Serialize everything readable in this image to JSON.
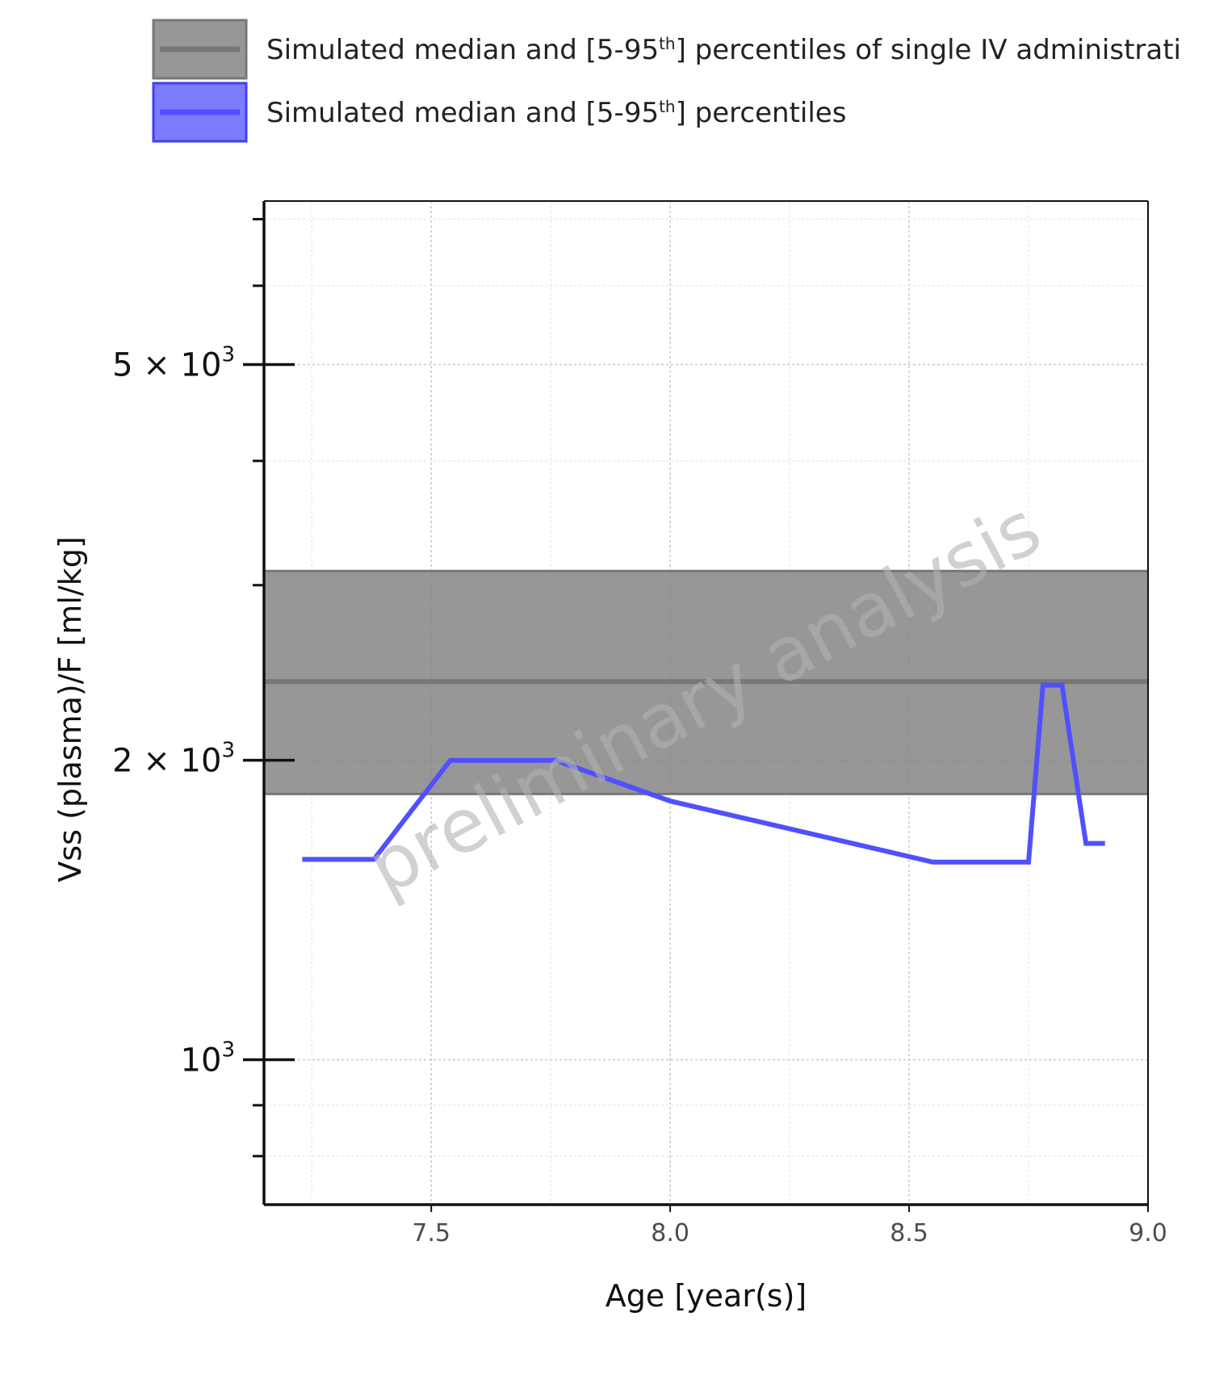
{
  "chart_data": {
    "type": "line",
    "xlabel": "Age [year(s)]",
    "ylabel": "Vss (plasma)/F [ml/kg]",
    "xlim": [
      7.15,
      9.0
    ],
    "ylim": [
      715,
      7300
    ],
    "yscale": "log",
    "xticks": [
      {
        "value": 7.5,
        "label": "7.5"
      },
      {
        "value": 8.0,
        "label": "8.0"
      },
      {
        "value": 8.5,
        "label": "8.5"
      },
      {
        "value": 9.0,
        "label": "9.0"
      }
    ],
    "yticks_major": [
      {
        "value": 1000,
        "mant": "",
        "base": "10",
        "exp": "3"
      },
      {
        "value": 2000,
        "mant": "2 × ",
        "base": "10",
        "exp": "3"
      },
      {
        "value": 5000,
        "mant": "5 × ",
        "base": "10",
        "exp": "3"
      }
    ],
    "yticks_minor": [
      800,
      900,
      3000,
      4000,
      6000,
      7000
    ],
    "grid": true,
    "legend": {
      "position": "top",
      "entries": [
        {
          "text_before": "Simulated median and [5-95",
          "sup": "th",
          "text_after": "] percentiles of single IV administrati",
          "color": "#808080"
        },
        {
          "text_before": "Simulated median and [5-95",
          "sup": "th",
          "text_after": "] percentiles",
          "color": "#5050ff"
        }
      ]
    },
    "series": [
      {
        "type": "band",
        "color": "#808080",
        "median": 2400,
        "lower": 1850,
        "upper": 3100
      },
      {
        "type": "line",
        "color": "#5050ff",
        "x": [
          7.23,
          7.38,
          7.54,
          7.76,
          8.0,
          8.55,
          8.75,
          8.78,
          8.82,
          8.87,
          8.91
        ],
        "y": [
          1590,
          1590,
          2000,
          2000,
          1820,
          1580,
          1580,
          2380,
          2380,
          1650,
          1650
        ]
      }
    ],
    "watermark": "preliminary analysis"
  }
}
